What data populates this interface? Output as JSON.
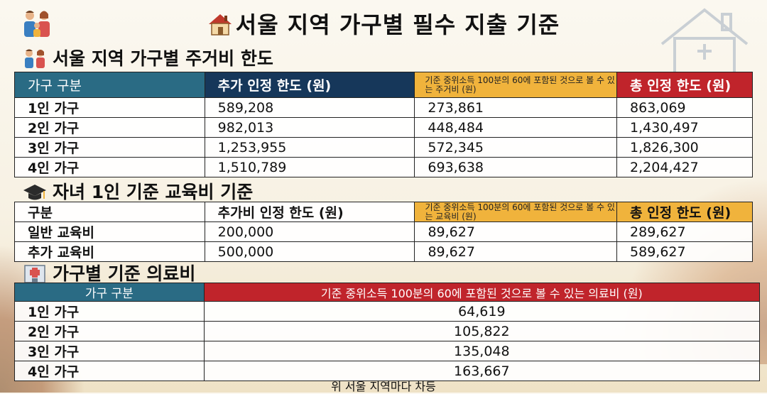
{
  "title": "서울 지역 가구별 필수 지출 기준",
  "housing": {
    "heading": "서울 지역 가구별 주거비 한도",
    "columns": [
      "가구 구분",
      "추가 인정 한도 (원)",
      "기준 중위소득 100분의 60에 포함된 것으로 볼 수 있는 주거비 (원)",
      "총 인정 한도 (원)"
    ],
    "rows": [
      [
        "1인 가구",
        "589,208",
        "273,861",
        "863,069"
      ],
      [
        "2인 가구",
        "982,013",
        "448,484",
        "1,430,497"
      ],
      [
        "3인 가구",
        "1,253,955",
        "572,345",
        "1,826,300"
      ],
      [
        "4인 가구",
        "1,510,789",
        "693,638",
        "2,204,427"
      ]
    ]
  },
  "education": {
    "heading": "자녀 1인 기준 교육비 기준",
    "columns": [
      "구분",
      "추가비 인정 한도 (원)",
      "기준 중위소득 100분의 60에 포함된 것으로 볼 수 있는 교육비 (원)",
      "총 인정 한도 (원)"
    ],
    "rows": [
      [
        "일반 교육비",
        "200,000",
        "89,627",
        "289,627"
      ],
      [
        "추가 교육비",
        "500,000",
        "89,627",
        "589,627"
      ]
    ]
  },
  "medical": {
    "heading": "가구별 기준 의료비",
    "columns": [
      "가구 구분",
      "기준 중위소득 100분의 60에 포함된 것으로 볼 수 있는 의료비 (원)"
    ],
    "rows": [
      [
        "1인 가구",
        "64,619"
      ],
      [
        "2인 가구",
        "105,822"
      ],
      [
        "3인 가구",
        "135,048"
      ],
      [
        "4인 가구",
        "163,667"
      ]
    ]
  },
  "footer": "위 서울 지역마다 차등",
  "colors": {
    "teal": "#2a6b84",
    "navy": "#16375a",
    "gold": "#f0b33c",
    "red": "#c0242b"
  },
  "icons": [
    "family-icon",
    "house-icon",
    "graduation-cap-icon",
    "hospital-icon"
  ]
}
